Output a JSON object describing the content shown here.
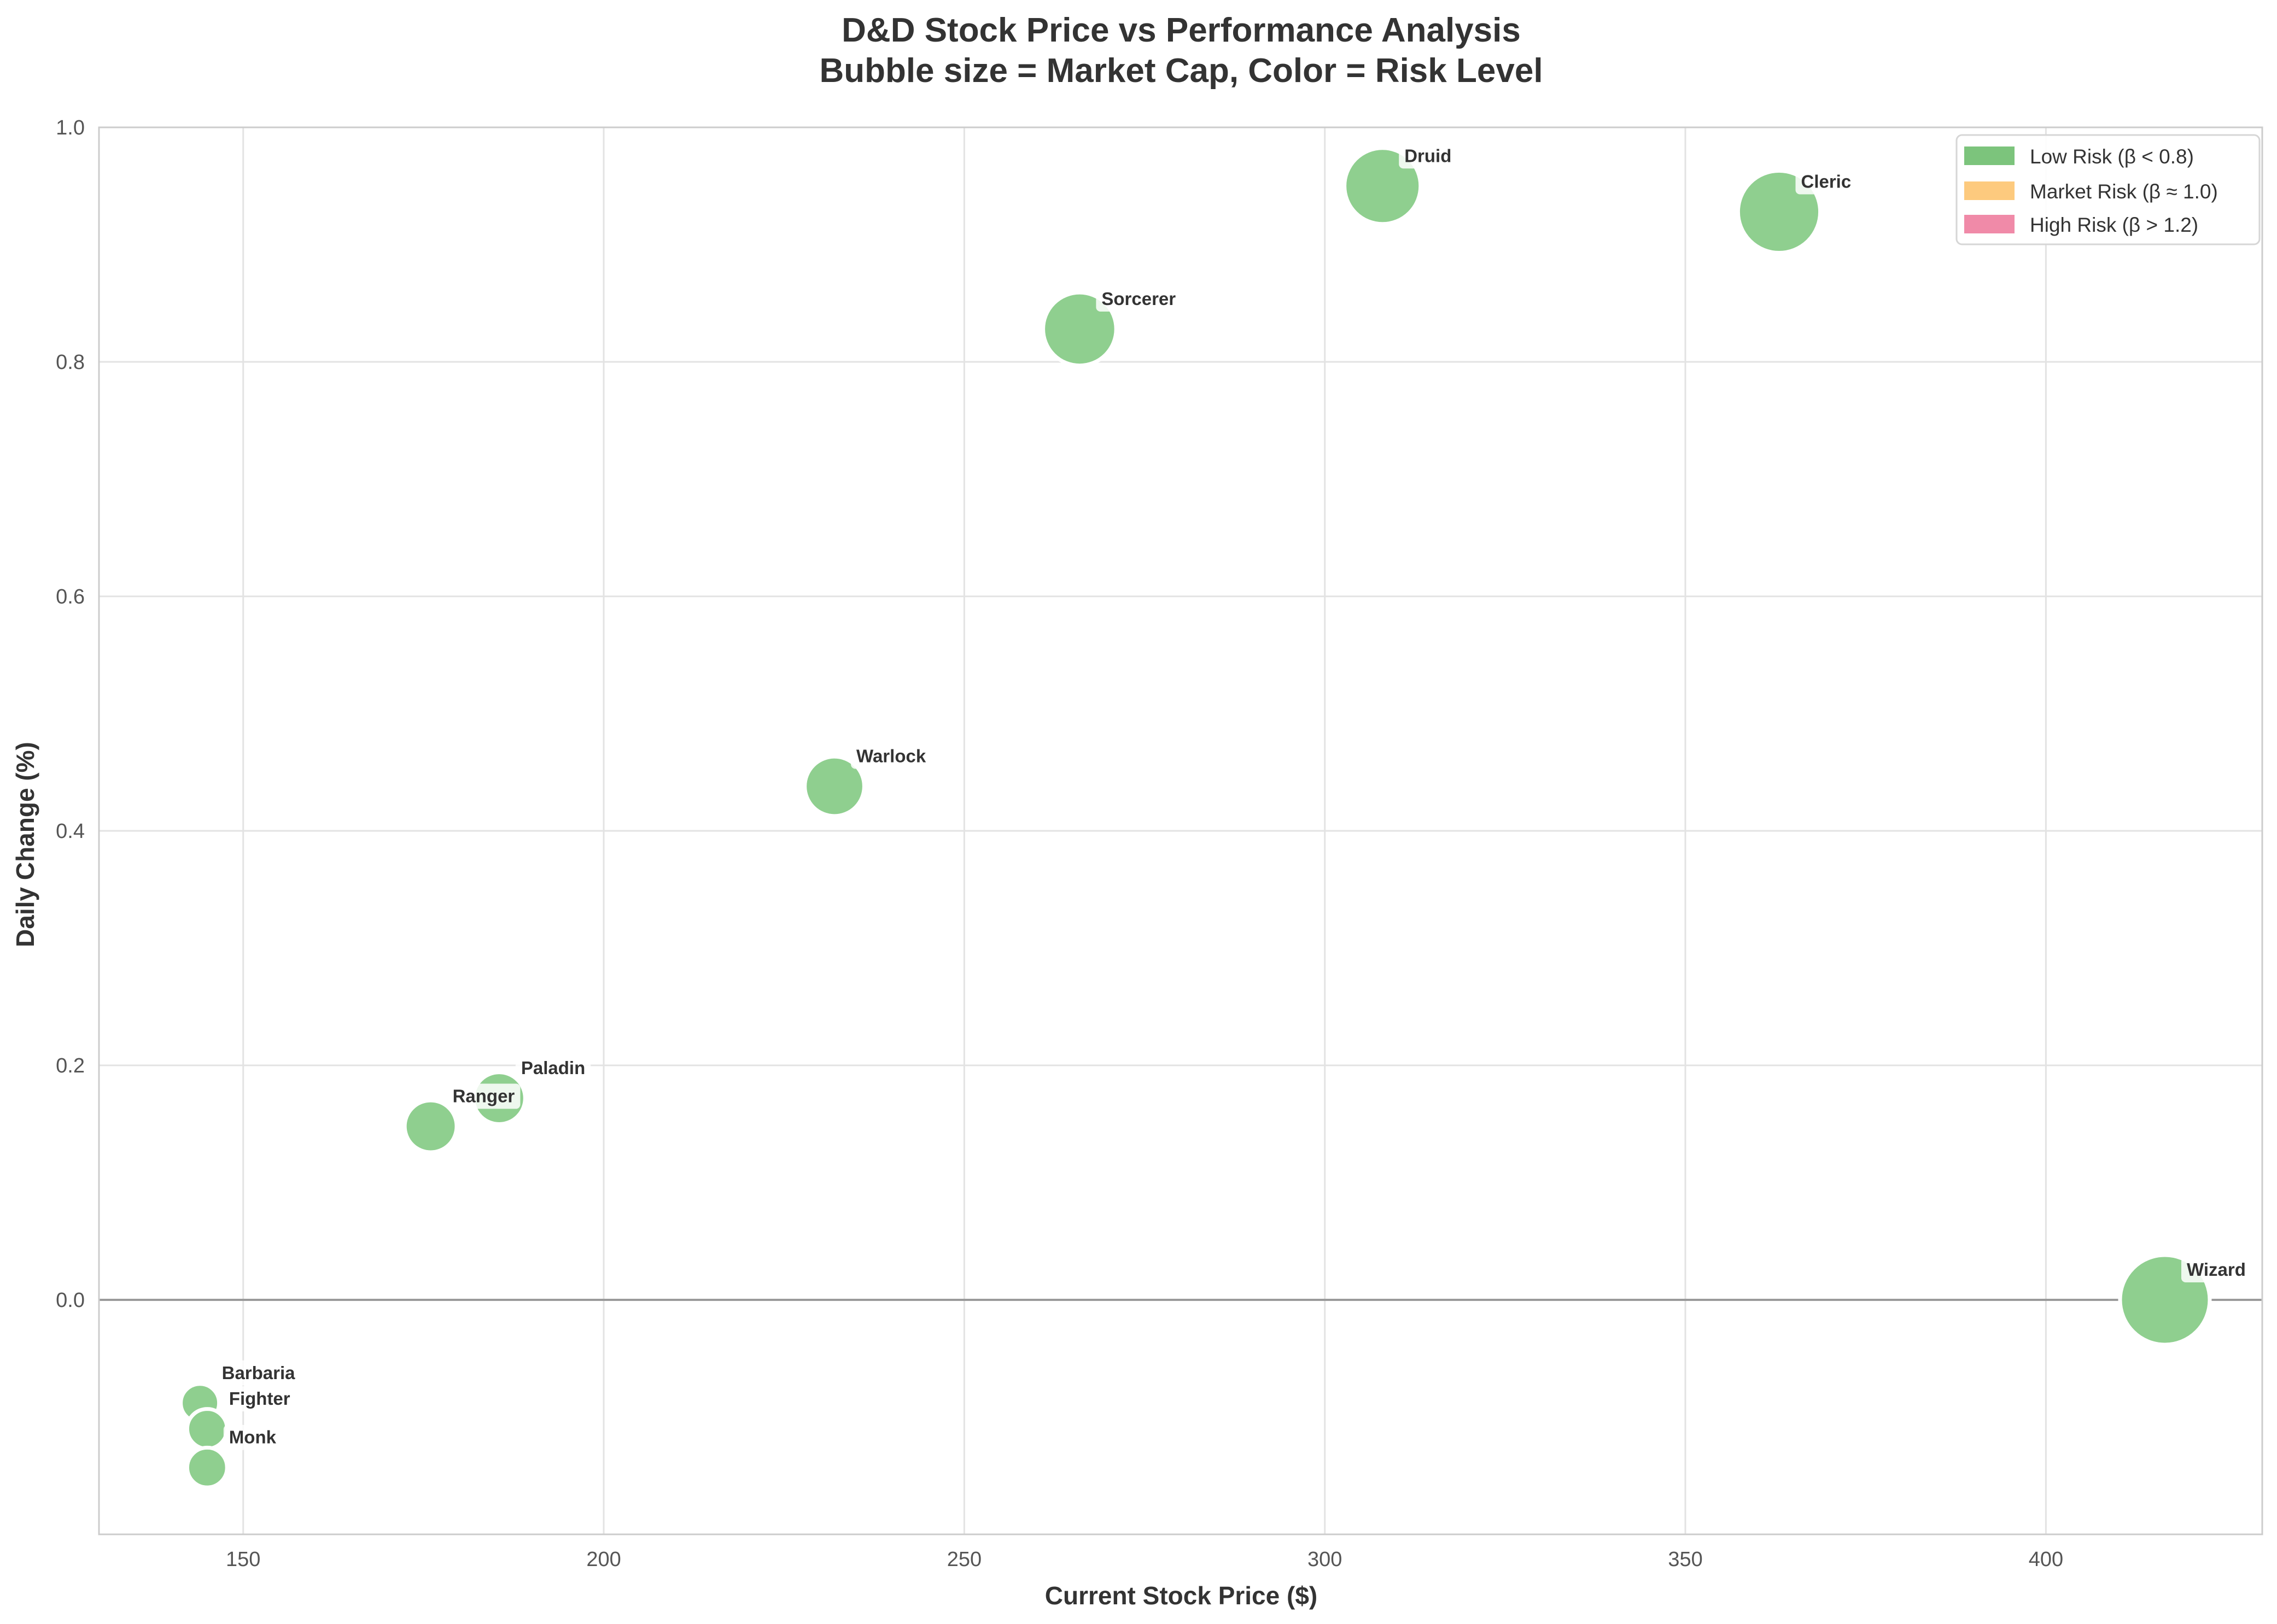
{
  "chart_data": {
    "type": "scatter",
    "title": "D&D Stock Price vs Performance Analysis",
    "subtitle": "Bubble size = Market Cap, Color = Risk Level",
    "xlabel": "Current Stock Price ($)",
    "ylabel": "Daily Change (%)",
    "xlim": [
      130,
      430
    ],
    "ylim": [
      -0.2,
      1.0
    ],
    "xticks": [
      150,
      200,
      250,
      300,
      350,
      400
    ],
    "yticks": [
      0.0,
      0.2,
      0.4,
      0.6,
      0.8,
      1.0
    ],
    "xtick_labels": [
      "150",
      "200",
      "250",
      "300",
      "350",
      "400"
    ],
    "ytick_labels": [
      "0.0",
      "0.2",
      "0.4",
      "0.6",
      "0.8",
      "1.0"
    ],
    "grid": true,
    "zero_line": true,
    "legend_position": "top-right",
    "legend": [
      {
        "label": "Low Risk (β < 0.8)",
        "color": "#7cc47c"
      },
      {
        "label": "Market Risk (β ≈ 1.0)",
        "color": "#fdca7e"
      },
      {
        "label": "High Risk (β > 1.2)",
        "color": "#f08aa8"
      }
    ],
    "bubble_color": "#8fcf8f",
    "points": [
      {
        "label": "Druid",
        "x": 308,
        "y": 0.95,
        "size": 0.82
      },
      {
        "label": "Cleric",
        "x": 363,
        "y": 0.928,
        "size": 0.9
      },
      {
        "label": "Sorcerer",
        "x": 266,
        "y": 0.828,
        "size": 0.78
      },
      {
        "label": "Warlock",
        "x": 232,
        "y": 0.438,
        "size": 0.6
      },
      {
        "label": "Paladin",
        "x": 185.5,
        "y": 0.172,
        "size": 0.5
      },
      {
        "label": "Ranger",
        "x": 176,
        "y": 0.148,
        "size": 0.5
      },
      {
        "label": "Wizard",
        "x": 416.5,
        "y": 0.0,
        "size": 1.0
      },
      {
        "label": "Barbaria",
        "x": 144,
        "y": -0.088,
        "size": 0.32
      },
      {
        "label": "Fighter",
        "x": 145,
        "y": -0.11,
        "size": 0.34
      },
      {
        "label": "Monk",
        "x": 145,
        "y": -0.143,
        "size": 0.34
      }
    ]
  }
}
